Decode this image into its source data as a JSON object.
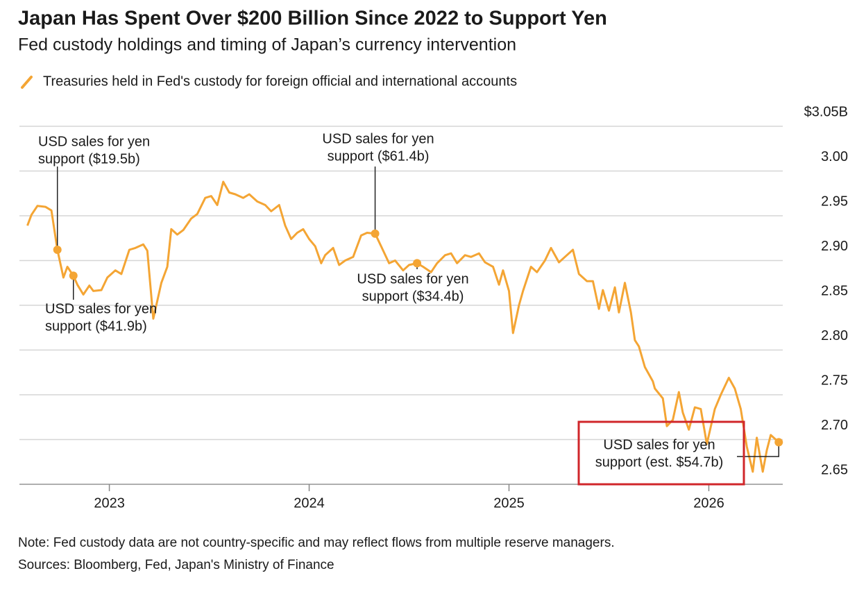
{
  "chart_data": {
    "type": "line",
    "title": "Japan Has Spent Over $200 Billion Since 2022 to Support Yen",
    "subtitle": "Fed custody holdings and timing of Japan’s currency intervention",
    "note": "Note: Fed custody data are not country-specific and may reflect flows from multiple reserve managers.",
    "source": "Sources: Bloomberg, Fed, Japan's Ministry of Finance",
    "x": [
      2022.59,
      2022.61,
      2022.64,
      2022.68,
      2022.71,
      2022.74,
      2022.77,
      2022.79,
      2022.82,
      2022.84,
      2022.87,
      2022.9,
      2022.92,
      2022.96,
      2022.99,
      2023.03,
      2023.06,
      2023.1,
      2023.13,
      2023.17,
      2023.19,
      2023.22,
      2023.26,
      2023.29,
      2023.31,
      2023.34,
      2023.37,
      2023.41,
      2023.44,
      2023.48,
      2023.51,
      2023.54,
      2023.57,
      2023.6,
      2023.63,
      2023.67,
      2023.7,
      2023.74,
      2023.78,
      2023.81,
      2023.85,
      2023.88,
      2023.91,
      2023.94,
      2023.97,
      2024.0,
      2024.03,
      2024.06,
      2024.08,
      2024.12,
      2024.15,
      2024.18,
      2024.22,
      2024.26,
      2024.29,
      2024.33,
      2024.36,
      2024.4,
      2024.43,
      2024.47,
      2024.5,
      2024.54,
      2024.57,
      2024.61,
      2024.64,
      2024.68,
      2024.71,
      2024.74,
      2024.78,
      2024.81,
      2024.85,
      2024.88,
      2024.92,
      2024.95,
      2024.97,
      2025.0,
      2025.02,
      2025.05,
      2025.07,
      2025.11,
      2025.14,
      2025.18,
      2025.21,
      2025.25,
      2025.28,
      2025.32,
      2025.35,
      2025.39,
      2025.42,
      2025.45,
      2025.47,
      2025.5,
      2025.53,
      2025.55,
      2025.58,
      2025.61,
      2025.63,
      2025.65,
      2025.68,
      2025.72,
      2025.73,
      2025.77,
      2025.79,
      2025.82,
      2025.85,
      2025.87,
      2025.9,
      2025.93,
      2025.96,
      2025.99,
      2026.03,
      2026.06,
      2026.1,
      2026.13,
      2026.16,
      2026.19,
      2026.22,
      2026.24,
      2026.27,
      2026.29,
      2026.31,
      2026.35
    ],
    "series": [
      {
        "name": "Treasuries held in Fed's custody for foreign official and international accounts",
        "color": "#f4a534",
        "values": [
          2.939,
          2.951,
          2.961,
          2.96,
          2.956,
          2.912,
          2.881,
          2.893,
          2.883,
          2.873,
          2.862,
          2.872,
          2.866,
          2.867,
          2.881,
          2.889,
          2.885,
          2.912,
          2.914,
          2.918,
          2.911,
          2.835,
          2.875,
          2.893,
          2.935,
          2.929,
          2.934,
          2.947,
          2.952,
          2.97,
          2.972,
          2.962,
          2.988,
          2.976,
          2.974,
          2.97,
          2.974,
          2.966,
          2.962,
          2.955,
          2.962,
          2.939,
          2.924,
          2.931,
          2.935,
          2.924,
          2.916,
          2.897,
          2.906,
          2.914,
          2.895,
          2.9,
          2.904,
          2.928,
          2.931,
          2.93,
          2.916,
          2.897,
          2.9,
          2.889,
          2.895,
          2.897,
          2.893,
          2.887,
          2.897,
          2.906,
          2.908,
          2.897,
          2.906,
          2.904,
          2.908,
          2.898,
          2.893,
          2.873,
          2.889,
          2.866,
          2.819,
          2.85,
          2.866,
          2.893,
          2.887,
          2.9,
          2.914,
          2.898,
          2.904,
          2.912,
          2.885,
          2.877,
          2.877,
          2.846,
          2.867,
          2.844,
          2.87,
          2.842,
          2.875,
          2.842,
          2.811,
          2.804,
          2.781,
          2.765,
          2.757,
          2.746,
          2.715,
          2.722,
          2.753,
          2.73,
          2.711,
          2.736,
          2.734,
          2.695,
          2.734,
          2.75,
          2.769,
          2.757,
          2.734,
          2.692,
          2.664,
          2.702,
          2.664,
          2.688,
          2.705,
          2.697
        ]
      }
    ],
    "annotations": [
      {
        "x": 2022.74,
        "y": 2.912,
        "label": [
          "USD sales for yen",
          "support ($19.5b)"
        ]
      },
      {
        "x": 2022.82,
        "y": 2.883,
        "label": [
          "USD sales for yen",
          "support ($41.9b)"
        ]
      },
      {
        "x": 2024.33,
        "y": 2.93,
        "label": [
          "USD sales for yen",
          "support ($61.4b)"
        ]
      },
      {
        "x": 2024.54,
        "y": 2.897,
        "label": [
          "USD sales for yen",
          "support ($34.4b)"
        ]
      },
      {
        "x": 2026.35,
        "y": 2.697,
        "label": [
          "USD sales for yen",
          "support (est. $54.7b)"
        ]
      }
    ],
    "xlim": [
      2022.55,
      2026.37
    ],
    "xticks": [
      2023,
      2024,
      2025,
      2026
    ],
    "ylim": [
      2.65,
      3.05
    ],
    "yticks": [
      2.65,
      {
        "value": 2.7,
        "label": "2.70"
      },
      2.75,
      {
        "value": 2.8,
        "label": "2.80"
      },
      2.85,
      {
        "value": 2.9,
        "label": "2.90"
      },
      2.95,
      {
        "value": 3,
        "label": "3.00"
      },
      {
        "value": 3.05,
        "label": "$3.05B"
      }
    ],
    "grid": true
  }
}
